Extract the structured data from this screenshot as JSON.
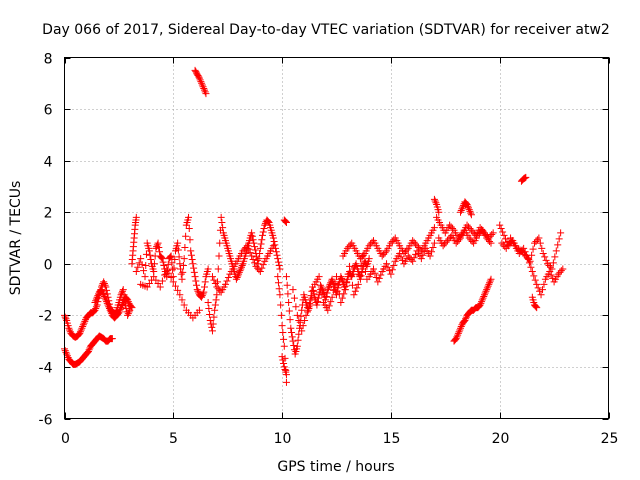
{
  "chart_data": {
    "type": "scatter",
    "title": "Day 066 of 2017, Sidereal Day-to-day VTEC variation (SDTVAR) for receiver atw2",
    "xlabel": "GPS time / hours",
    "ylabel": "SDTVAR / TECUs",
    "xlim": [
      0,
      25
    ],
    "ylim": [
      -6,
      8
    ],
    "xticks": [
      0,
      5,
      10,
      15,
      20,
      25
    ],
    "yticks": [
      -6,
      -4,
      -2,
      0,
      2,
      4,
      6,
      8
    ],
    "xtick_labels": [
      "0",
      "5",
      "10",
      "15",
      "20",
      "25"
    ],
    "ytick_labels": [
      "-6",
      "-4",
      "-2",
      "0",
      "2",
      "4",
      "6",
      "8"
    ],
    "grid": true,
    "marker": "+",
    "marker_color": "#ff0000",
    "series": [
      {
        "name": "SDTVAR",
        "segments": [
          {
            "x": [
              0.0,
              0.1,
              0.2,
              0.3,
              0.4,
              0.5,
              0.6,
              0.7,
              0.8,
              0.9,
              1.0,
              1.1,
              1.2,
              1.3,
              1.4,
              1.5,
              1.6,
              1.7,
              1.8,
              1.9,
              2.0,
              2.1,
              2.2
            ],
            "y": [
              -3.3,
              -3.5,
              -3.7,
              -3.8,
              -3.9,
              -3.9,
              -3.85,
              -3.8,
              -3.7,
              -3.6,
              -3.5,
              -3.4,
              -3.2,
              -3.1,
              -3.0,
              -2.9,
              -2.8,
              -2.85,
              -2.9,
              -3.0,
              -3.0,
              -2.9,
              -2.9
            ]
          },
          {
            "x": [
              0.0,
              0.1,
              0.2,
              0.3,
              0.4,
              0.5,
              0.6,
              0.7,
              0.8,
              0.9,
              1.0,
              1.1,
              1.2,
              1.3,
              1.4,
              1.5,
              1.6,
              1.7,
              1.8,
              1.9,
              2.0,
              2.1,
              2.2,
              2.3,
              2.4,
              2.5,
              2.6,
              2.7,
              2.8,
              2.9,
              3.0
            ],
            "y": [
              -2.0,
              -2.2,
              -2.5,
              -2.7,
              -2.8,
              -2.85,
              -2.8,
              -2.7,
              -2.5,
              -2.3,
              -2.1,
              -2.0,
              -1.9,
              -1.9,
              -1.8,
              -1.6,
              -1.2,
              -0.9,
              -0.7,
              -0.9,
              -1.3,
              -1.7,
              -1.9,
              -2.0,
              -1.8,
              -1.5,
              -1.2,
              -1.0,
              -1.6,
              -2.0,
              -1.8
            ]
          },
          {
            "x": [
              1.4,
              1.5,
              1.6,
              1.7,
              1.8,
              1.9,
              2.0,
              2.1,
              2.2,
              2.3,
              2.4,
              2.5,
              2.6,
              2.7,
              2.8,
              2.9,
              3.0,
              3.1
            ],
            "y": [
              -1.5,
              -1.3,
              -1.1,
              -1.0,
              -1.2,
              -1.4,
              -1.6,
              -1.8,
              -2.0,
              -2.1,
              -2.0,
              -1.9,
              -1.7,
              -1.5,
              -1.3,
              -1.4,
              -1.6,
              -1.7
            ]
          },
          {
            "x": [
              3.1,
              3.15,
              3.2,
              3.25,
              3.3
            ],
            "y": [
              0.0,
              0.5,
              1.0,
              1.5,
              1.8
            ]
          },
          {
            "x": [
              3.3,
              3.5,
              3.7,
              3.8,
              3.9,
              4.0,
              4.1,
              4.2,
              4.3,
              4.4,
              4.5,
              4.6,
              4.7,
              4.8,
              4.9,
              5.0,
              5.1,
              5.2,
              5.3,
              5.4,
              5.5,
              5.6,
              5.7,
              5.8,
              5.9,
              6.0,
              6.1,
              6.2,
              6.3,
              6.4,
              6.5,
              6.6
            ],
            "y": [
              -0.3,
              0.2,
              -0.5,
              0.8,
              0.5,
              0.0,
              -0.3,
              0.6,
              0.8,
              0.3,
              0.2,
              -0.2,
              -0.5,
              0.2,
              0.3,
              -0.5,
              0.5,
              0.8,
              0.0,
              -0.6,
              0.2,
              1.5,
              1.8,
              0.5,
              0.0,
              -0.5,
              -1.0,
              -1.2,
              -1.3,
              -1.1,
              -0.5,
              -0.2
            ]
          },
          {
            "x": [
              3.5,
              3.8,
              4.1,
              4.4,
              4.7,
              5.0,
              5.3,
              5.6,
              5.9,
              6.2
            ],
            "y": [
              -0.8,
              -0.9,
              -0.5,
              -0.9,
              -0.2,
              -0.7,
              -1.2,
              -1.8,
              -2.1,
              -1.8
            ]
          },
          {
            "x": [
              6.0,
              6.1,
              6.2,
              6.3,
              6.4,
              6.5
            ],
            "y": [
              7.5,
              7.35,
              7.2,
              7.0,
              6.8,
              6.6
            ]
          },
          {
            "x": [
              6.6,
              6.7,
              6.8,
              6.9,
              7.0,
              7.1,
              7.2,
              7.3,
              7.4,
              7.5,
              7.6,
              7.7,
              7.8,
              7.9,
              8.0,
              8.1,
              8.2,
              8.3,
              8.4,
              8.5,
              8.6,
              8.7,
              8.8,
              8.9,
              9.0,
              9.1,
              9.2,
              9.3,
              9.4,
              9.5,
              9.6,
              9.7,
              9.8,
              9.9
            ],
            "y": [
              -1.5,
              -2.2,
              -2.6,
              -1.8,
              -1.2,
              0.3,
              1.8,
              1.2,
              0.9,
              0.6,
              0.3,
              0.0,
              -0.3,
              -0.6,
              -0.4,
              -0.2,
              0.0,
              0.3,
              0.6,
              0.9,
              1.2,
              0.8,
              0.4,
              0.0,
              0.6,
              1.1,
              1.5,
              1.7,
              1.6,
              1.3,
              1.0,
              0.6,
              0.2,
              -0.2
            ]
          },
          {
            "x": [
              6.8,
              7.0,
              7.2,
              7.4,
              7.6,
              7.8,
              8.0,
              8.2,
              8.4,
              8.6,
              8.8,
              9.0,
              9.2,
              9.4,
              9.6
            ],
            "y": [
              -0.5,
              -0.9,
              -1.1,
              -0.8,
              -0.4,
              -0.1,
              0.2,
              0.5,
              0.7,
              0.3,
              -0.1,
              -0.3,
              0.1,
              0.4,
              0.7
            ]
          },
          {
            "x": [
              9.8,
              9.9,
              10.0,
              10.1,
              10.2
            ],
            "y": [
              -0.5,
              -1.2,
              -2.4,
              -3.2,
              -4.6
            ]
          },
          {
            "x": [
              10.0,
              10.1,
              10.2
            ],
            "y": [
              -3.6,
              -4.0,
              -4.3
            ]
          },
          {
            "x": [
              10.1,
              10.2
            ],
            "y": [
              1.7,
              1.6
            ]
          },
          {
            "x": [
              10.2,
              10.3,
              10.4,
              10.5,
              10.6,
              10.7,
              10.8,
              10.9,
              11.0,
              11.1,
              11.2,
              11.3,
              11.4,
              11.5,
              11.6,
              11.7,
              11.8,
              11.9,
              12.0,
              12.1,
              12.2,
              12.3,
              12.4,
              12.5,
              12.6,
              12.7,
              12.8,
              12.9,
              13.0,
              13.1,
              13.2,
              13.3,
              13.4,
              13.5,
              13.6,
              13.7,
              13.8,
              13.9,
              14.0
            ],
            "y": [
              -0.5,
              -1.5,
              -2.5,
              -3.0,
              -3.5,
              -3.2,
              -2.5,
              -1.8,
              -1.2,
              -1.5,
              -1.8,
              -1.4,
              -0.9,
              -1.3,
              -1.6,
              -1.2,
              -0.9,
              -1.1,
              -1.4,
              -1.0,
              -0.8,
              -0.6,
              -0.9,
              -1.2,
              -0.8,
              -0.5,
              -0.7,
              -1.0,
              -0.6,
              -0.3,
              -0.5,
              -0.2,
              0.0,
              -0.3,
              -0.6,
              -0.2,
              0.1,
              -0.1,
              0.2
            ]
          },
          {
            "x": [
              10.5,
              10.7,
              10.9,
              11.1,
              11.3,
              11.5,
              11.7,
              11.9,
              12.1,
              12.3,
              12.5,
              12.7,
              12.9,
              13.1,
              13.3,
              13.5,
              13.7,
              13.9
            ],
            "y": [
              -1.0,
              -2.0,
              -2.6,
              -2.0,
              -1.6,
              -0.8,
              -0.5,
              -1.5,
              -1.8,
              -1.3,
              -0.5,
              -1.5,
              -1.0,
              -0.1,
              -1.2,
              -0.8,
              0.3,
              -0.6
            ]
          },
          {
            "x": [
              12.8,
              13.0,
              13.2,
              13.4,
              13.6,
              13.8,
              14.0,
              14.2,
              14.4,
              14.6,
              14.8,
              15.0,
              15.2,
              15.4,
              15.6,
              15.8,
              16.0,
              16.2,
              16.4,
              16.6,
              16.8,
              17.0
            ],
            "y": [
              0.3,
              0.6,
              0.8,
              0.5,
              0.2,
              0.4,
              0.7,
              0.9,
              0.6,
              0.3,
              0.5,
              0.8,
              1.0,
              0.7,
              0.4,
              0.6,
              0.9,
              0.7,
              0.5,
              0.8,
              1.1,
              1.4
            ]
          },
          {
            "x": [
              14.0,
              14.2,
              14.4,
              14.6,
              14.8,
              15.0,
              15.2,
              15.4,
              15.6,
              15.8,
              16.0,
              16.2,
              16.4,
              16.6,
              16.8,
              17.0
            ],
            "y": [
              -0.5,
              -0.2,
              -0.7,
              -0.3,
              0.0,
              -0.4,
              0.1,
              0.4,
              0.0,
              0.3,
              0.1,
              0.5,
              0.2,
              0.6,
              0.3,
              0.8
            ]
          },
          {
            "x": [
              17.0,
              17.1,
              17.2
            ],
            "y": [
              2.5,
              2.3,
              2.0
            ]
          },
          {
            "x": [
              17.1,
              17.3,
              17.5,
              17.7,
              17.9,
              18.1,
              18.3,
              18.5,
              18.7,
              18.9,
              19.1,
              19.3,
              19.5,
              19.7
            ],
            "y": [
              1.8,
              1.5,
              1.2,
              1.5,
              1.3,
              1.0,
              1.2,
              1.5,
              1.3,
              1.1,
              1.4,
              1.2,
              1.0,
              1.2
            ]
          },
          {
            "x": [
              17.2,
              17.4,
              17.6,
              17.8,
              18.0,
              18.2,
              18.4,
              18.6,
              18.8,
              19.0,
              19.2,
              19.4,
              19.6
            ],
            "y": [
              1.0,
              0.7,
              0.9,
              1.1,
              0.8,
              1.0,
              1.3,
              1.0,
              0.8,
              1.1,
              1.3,
              1.0,
              0.8
            ]
          },
          {
            "x": [
              18.2,
              18.3,
              18.4,
              18.5,
              18.6,
              18.7
            ],
            "y": [
              2.0,
              2.2,
              2.4,
              2.3,
              2.1,
              1.9
            ]
          },
          {
            "x": [
              17.9,
              18.0,
              18.1,
              18.2,
              18.3,
              18.4,
              18.5,
              18.6,
              18.7,
              18.8,
              18.9,
              19.0,
              19.1,
              19.2,
              19.3,
              19.4,
              19.5,
              19.6
            ],
            "y": [
              -3.0,
              -2.9,
              -2.7,
              -2.5,
              -2.3,
              -2.2,
              -2.0,
              -1.9,
              -1.8,
              -1.8,
              -1.7,
              -1.7,
              -1.6,
              -1.4,
              -1.2,
              -1.0,
              -0.8,
              -0.6
            ]
          },
          {
            "x": [
              20.0,
              20.2,
              20.4,
              20.6,
              20.8,
              21.0,
              21.2,
              21.4,
              21.6,
              21.8,
              22.0,
              22.2,
              22.4,
              22.6,
              22.8
            ],
            "y": [
              1.5,
              1.1,
              0.7,
              0.9,
              0.6,
              0.5,
              0.3,
              0.1,
              0.8,
              1.0,
              0.4,
              0.0,
              -0.2,
              0.5,
              1.2
            ]
          },
          {
            "x": [
              20.1,
              20.3,
              20.5,
              20.7,
              20.9,
              21.1,
              21.3,
              21.5,
              21.7,
              21.9,
              22.1,
              22.3,
              22.5,
              22.7,
              22.9
            ],
            "y": [
              0.8,
              0.6,
              1.0,
              0.7,
              0.4,
              0.6,
              0.2,
              -0.3,
              -0.8,
              -1.2,
              -0.6,
              -0.3,
              -0.7,
              -0.4,
              -0.2
            ]
          },
          {
            "x": [
              21.5,
              21.6,
              21.7
            ],
            "y": [
              -1.3,
              -1.6,
              -1.7
            ]
          },
          {
            "x": [
              21.0,
              21.1,
              21.2
            ],
            "y": [
              3.2,
              3.3,
              3.35
            ]
          }
        ]
      }
    ]
  }
}
